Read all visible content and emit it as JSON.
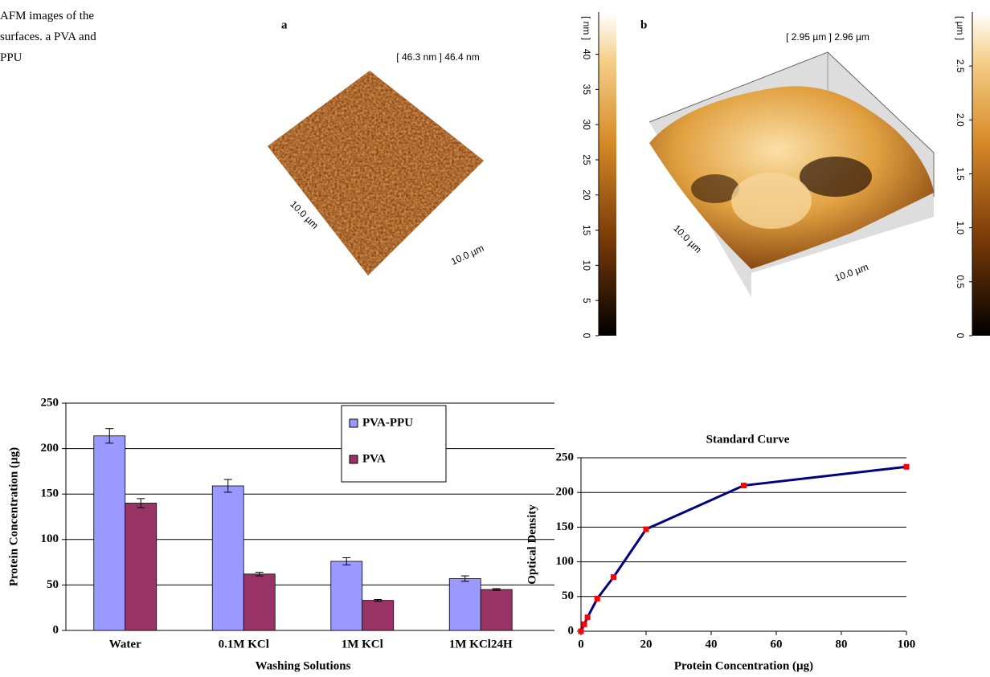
{
  "caption": [
    "AFM images of the",
    "surfaces. a PVA and",
    "PPU"
  ],
  "afm_panels": [
    {
      "label": "a",
      "range_label": "[ 46.3 nm ] 46.4 nm",
      "x_size": "10.0 µm",
      "y_size": "10.0 µm",
      "colorbar": {
        "unit": "[ nm ]",
        "lim": [
          0,
          46
        ],
        "ticks": [
          0,
          5,
          10,
          15,
          20,
          25,
          30,
          35,
          40
        ]
      }
    },
    {
      "label": "b",
      "range_label": "[ 2.95 µm ] 2.96 µm",
      "x_size": "10.0 µm",
      "y_size": "10.0 µm",
      "colorbar": {
        "unit": "[ µm ]",
        "lim": [
          0,
          3
        ],
        "ticks": [
          0,
          0.5,
          {
            "value": 1,
            "label": "1.0"
          },
          1.5,
          {
            "value": 2,
            "label": "2.0"
          },
          2.5
        ]
      }
    }
  ],
  "chart_data": [
    {
      "type": "bar",
      "categories": [
        "Water",
        "0.1M KCl",
        "1M KCl",
        "1M KCl24H"
      ],
      "series": [
        {
          "name": "PVA-PPU",
          "color": "#9999ff",
          "values": [
            214,
            159,
            76,
            57
          ],
          "errors": [
            8,
            7,
            4,
            3
          ]
        },
        {
          "name": "PVA",
          "color": "#993366",
          "values": [
            140,
            62,
            33,
            45
          ],
          "errors": [
            5,
            2,
            1,
            1
          ]
        }
      ],
      "xlabel": "Washing Solutions",
      "ylabel": "Protein Concentration (µg)",
      "ylim": [
        0,
        250
      ],
      "yticks": [
        0,
        50,
        100,
        150,
        200,
        250
      ],
      "grid": true,
      "legend": "top-right"
    },
    {
      "type": "line",
      "title": "Standard Curve",
      "x": [
        0,
        1,
        2,
        5,
        10,
        20,
        50,
        100
      ],
      "values": [
        0,
        10,
        20,
        47,
        78,
        147,
        210,
        237
      ],
      "color": "#000080",
      "marker_color": "#ff0000",
      "xlabel": "Protein Concentration (µg)",
      "ylabel": "Optical Density",
      "xlim": [
        0,
        100
      ],
      "xticks": [
        0,
        20,
        40,
        60,
        80,
        100
      ],
      "ylim": [
        0,
        250
      ],
      "yticks": [
        0,
        50,
        100,
        150,
        200,
        250
      ],
      "grid": true
    }
  ]
}
